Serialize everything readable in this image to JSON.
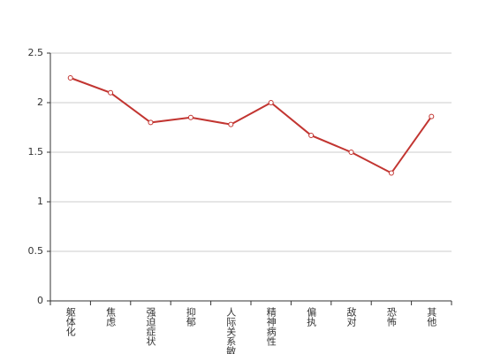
{
  "chart_data": {
    "type": "line",
    "categories": [
      "躯体化",
      "焦虑",
      "强迫症状",
      "抑郁",
      "人际关系敏感",
      "精神病性",
      "偏执",
      "敌对",
      "恐怖",
      "其他"
    ],
    "series": [
      {
        "color": "#c23531",
        "values": [
          2.25,
          2.1,
          1.8,
          1.85,
          1.78,
          2.0,
          1.67,
          1.5,
          1.29,
          1.86
        ]
      }
    ],
    "ylim": [
      0,
      2.5
    ],
    "yticks": [
      0,
      0.5,
      1,
      1.5,
      2,
      2.5
    ],
    "grid": true
  }
}
